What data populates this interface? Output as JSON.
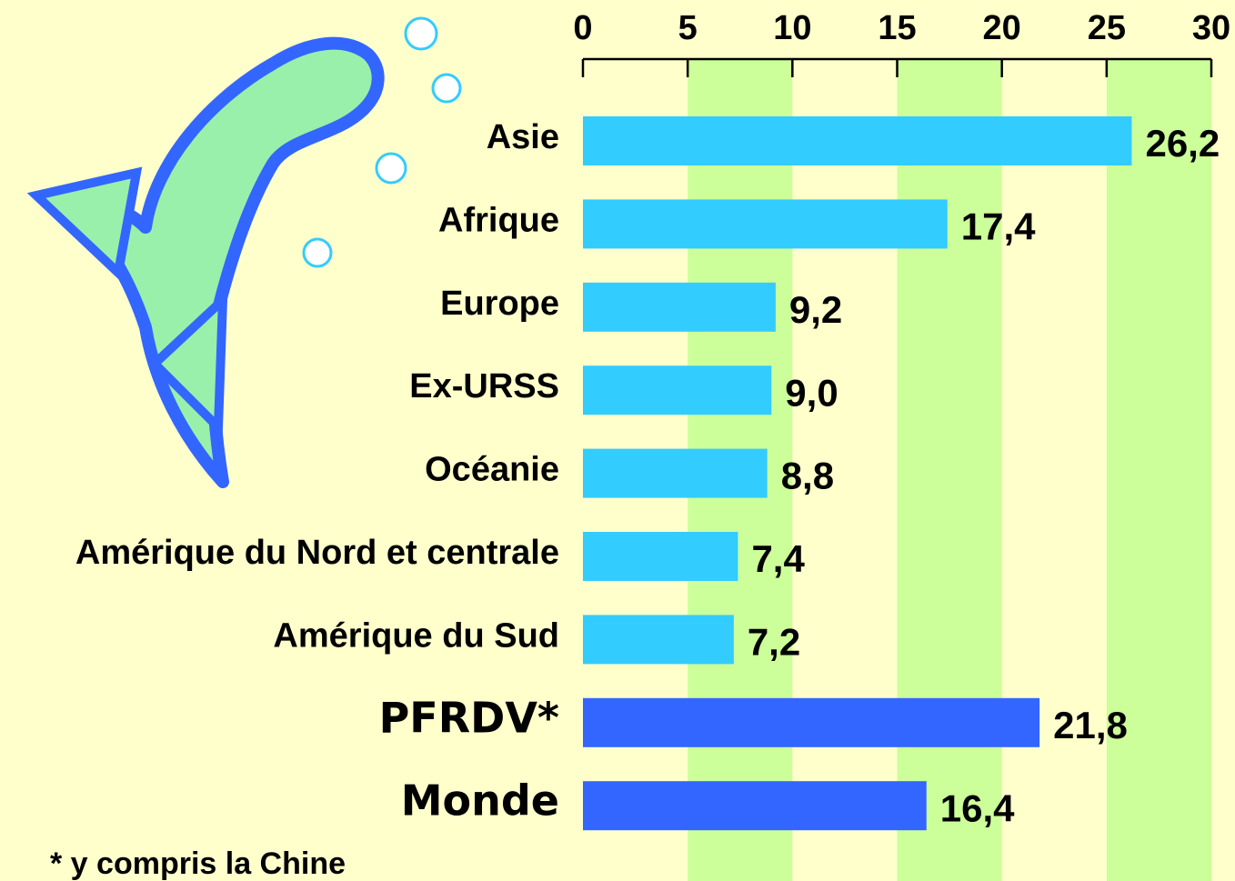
{
  "chart_data": {
    "type": "bar",
    "orientation": "horizontal",
    "categories": [
      "Asie",
      "Afrique",
      "Europe",
      "Ex-URSS",
      "Océanie",
      "Amérique du Nord et centrale",
      "Amérique du Sud",
      "PFRDV*",
      "Monde"
    ],
    "values": [
      26.2,
      17.4,
      9.2,
      9.0,
      8.8,
      7.4,
      7.2,
      21.8,
      16.4
    ],
    "value_labels": [
      "26,2",
      "17,4",
      "9,2",
      "9,0",
      "8,8",
      "7,4",
      "7,2",
      "21,8",
      "16,4"
    ],
    "colors": [
      "#33ccff",
      "#33ccff",
      "#33ccff",
      "#33ccff",
      "#33ccff",
      "#33ccff",
      "#33ccff",
      "#3366ff",
      "#3366ff"
    ],
    "xlim": [
      0,
      30
    ],
    "xticks": [
      0,
      5,
      10,
      15,
      20,
      25,
      30
    ],
    "axis_position": "top",
    "bands": true,
    "band_color": "#ccff99",
    "footnote": "* y compris la Chine"
  }
}
